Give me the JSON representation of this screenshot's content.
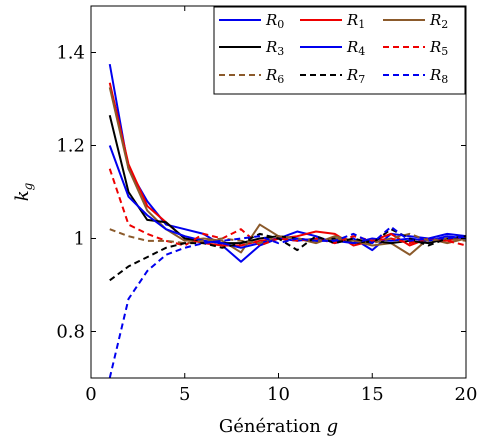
{
  "chart_data": {
    "type": "line",
    "title": "",
    "xlabel": "Génération",
    "xlabel_var": "g",
    "ylabel_var": "k",
    "ylabel_sub": "g",
    "xlim": [
      0,
      20
    ],
    "ylim": [
      0.7,
      1.5
    ],
    "xticks": [
      0,
      5,
      10,
      15,
      20
    ],
    "yticks": [
      0.8,
      1,
      1.2,
      1.4
    ],
    "ytick_labels": [
      "0.8",
      "1",
      "1.2",
      "1.4"
    ],
    "grid": false,
    "legend_position": "top-right",
    "legend_columns": 3,
    "x": [
      1,
      2,
      3,
      4,
      5,
      6,
      7,
      8,
      9,
      10,
      11,
      12,
      13,
      14,
      15,
      16,
      17,
      18,
      19,
      20
    ],
    "series": [
      {
        "name": "R",
        "sub": "0",
        "color": "#0000ee",
        "dash": "solid",
        "values": [
          1.375,
          1.15,
          1.08,
          1.03,
          1.02,
          1.01,
          0.985,
          0.95,
          0.985,
          1.0,
          1.015,
          1.005,
          0.99,
          1.0,
          0.975,
          1.01,
          1.005,
          1.0,
          1.01,
          1.005
        ]
      },
      {
        "name": "R",
        "sub": "1",
        "color": "#ee0000",
        "dash": "solid",
        "values": [
          1.335,
          1.16,
          1.07,
          1.035,
          1.0,
          0.99,
          0.985,
          0.985,
          0.995,
          1.0,
          1.005,
          1.015,
          1.01,
          0.985,
          0.995,
          1.01,
          0.985,
          1.0,
          0.995,
          1.005
        ]
      },
      {
        "name": "R",
        "sub": "2",
        "color": "#8b5a2b",
        "dash": "solid",
        "values": [
          1.325,
          1.15,
          1.06,
          1.02,
          0.995,
          1.0,
          0.995,
          0.97,
          1.03,
          1.005,
          1.0,
          0.99,
          1.005,
          0.995,
          0.985,
          0.99,
          0.965,
          1.0,
          0.99,
          1.0
        ]
      },
      {
        "name": "R",
        "sub": "3",
        "color": "#000000",
        "dash": "solid",
        "values": [
          1.265,
          1.1,
          1.04,
          1.035,
          1.0,
          0.995,
          0.99,
          0.99,
          1.0,
          1.005,
          1.0,
          0.995,
          1.0,
          0.99,
          0.995,
          0.99,
          0.995,
          0.99,
          1.0,
          1.005
        ]
      },
      {
        "name": "R",
        "sub": "4",
        "color": "#0000ee",
        "dash": "solid",
        "values": [
          1.2,
          1.09,
          1.05,
          1.02,
          1.005,
          0.995,
          0.99,
          0.98,
          0.99,
          1.0,
          0.995,
          1.0,
          0.995,
          0.99,
          1.0,
          0.995,
          1.0,
          0.995,
          1.005,
          1.0
        ]
      },
      {
        "name": "R",
        "sub": "5",
        "color": "#ee0000",
        "dash": "dashed",
        "values": [
          1.15,
          1.03,
          1.01,
          0.995,
          0.985,
          1.01,
          1.0,
          1.02,
          0.985,
          1.0,
          0.995,
          1.0,
          0.99,
          1.005,
          0.995,
          1.0,
          0.99,
          1.0,
          0.995,
          0.985
        ]
      },
      {
        "name": "R",
        "sub": "6",
        "color": "#8b5a2b",
        "dash": "dashed",
        "values": [
          1.02,
          1.005,
          0.995,
          0.995,
          0.99,
          0.995,
          1.0,
          0.995,
          0.99,
          1.005,
          1.0,
          0.995,
          1.0,
          0.995,
          0.99,
          1.0,
          1.01,
          0.995,
          1.0,
          0.995
        ]
      },
      {
        "name": "R",
        "sub": "7",
        "color": "#000000",
        "dash": "dashed",
        "values": [
          0.91,
          0.94,
          0.96,
          0.98,
          0.99,
          0.99,
          0.98,
          0.99,
          1.01,
          1.0,
          0.975,
          1.005,
          0.99,
          1.0,
          0.99,
          1.02,
          1.0,
          0.985,
          1.0,
          1.005
        ]
      },
      {
        "name": "R",
        "sub": "8",
        "color": "#0000ee",
        "dash": "dashed",
        "values": [
          0.7,
          0.87,
          0.93,
          0.965,
          0.98,
          0.99,
          0.995,
          1.0,
          1.005,
          0.99,
          1.0,
          0.995,
          0.995,
          1.01,
          0.99,
          1.025,
          0.995,
          1.0,
          1.0,
          1.005
        ]
      }
    ]
  }
}
